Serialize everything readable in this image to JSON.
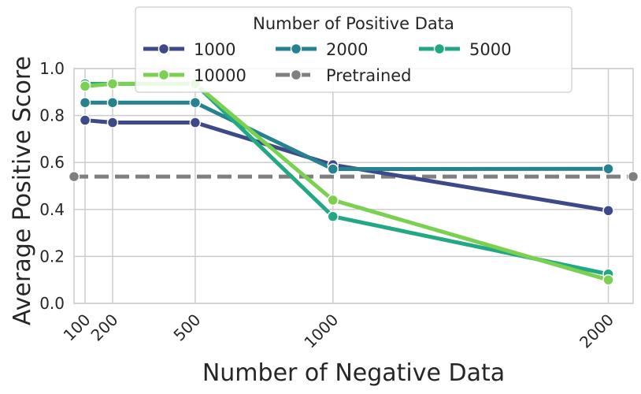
{
  "chart_data": {
    "type": "line",
    "xlabel": "Number of Negative Data",
    "ylabel": "Average Positive Score",
    "x": [
      100,
      200,
      500,
      1000,
      2000
    ],
    "x_tick_labels": [
      "100",
      "200",
      "500",
      "1000",
      "2000"
    ],
    "xlim": [
      60,
      2090
    ],
    "ylim": [
      0.0,
      1.0
    ],
    "y_ticks": [
      0.0,
      0.2,
      0.4,
      0.6,
      0.8,
      1.0
    ],
    "y_tick_labels": [
      "0.0",
      "0.2",
      "0.4",
      "0.6",
      "0.8",
      "1.0"
    ],
    "grid": true,
    "legend": {
      "title": "Number of Positive Data",
      "placement": "top-center"
    },
    "series": [
      {
        "name": "1000",
        "color": "#3e4989",
        "values": [
          0.78,
          0.77,
          0.77,
          0.59,
          0.395
        ]
      },
      {
        "name": "2000",
        "color": "#26828e",
        "values": [
          0.855,
          0.855,
          0.855,
          0.572,
          0.573
        ]
      },
      {
        "name": "5000",
        "color": "#22a884",
        "values": [
          0.935,
          0.935,
          0.935,
          0.37,
          0.125
        ]
      },
      {
        "name": "10000",
        "color": "#7ad151",
        "values": [
          0.925,
          0.935,
          0.935,
          0.44,
          0.1
        ]
      }
    ],
    "reference_line": {
      "name": "Pretrained",
      "color": "#7f7f7f",
      "value": 0.54
    }
  }
}
